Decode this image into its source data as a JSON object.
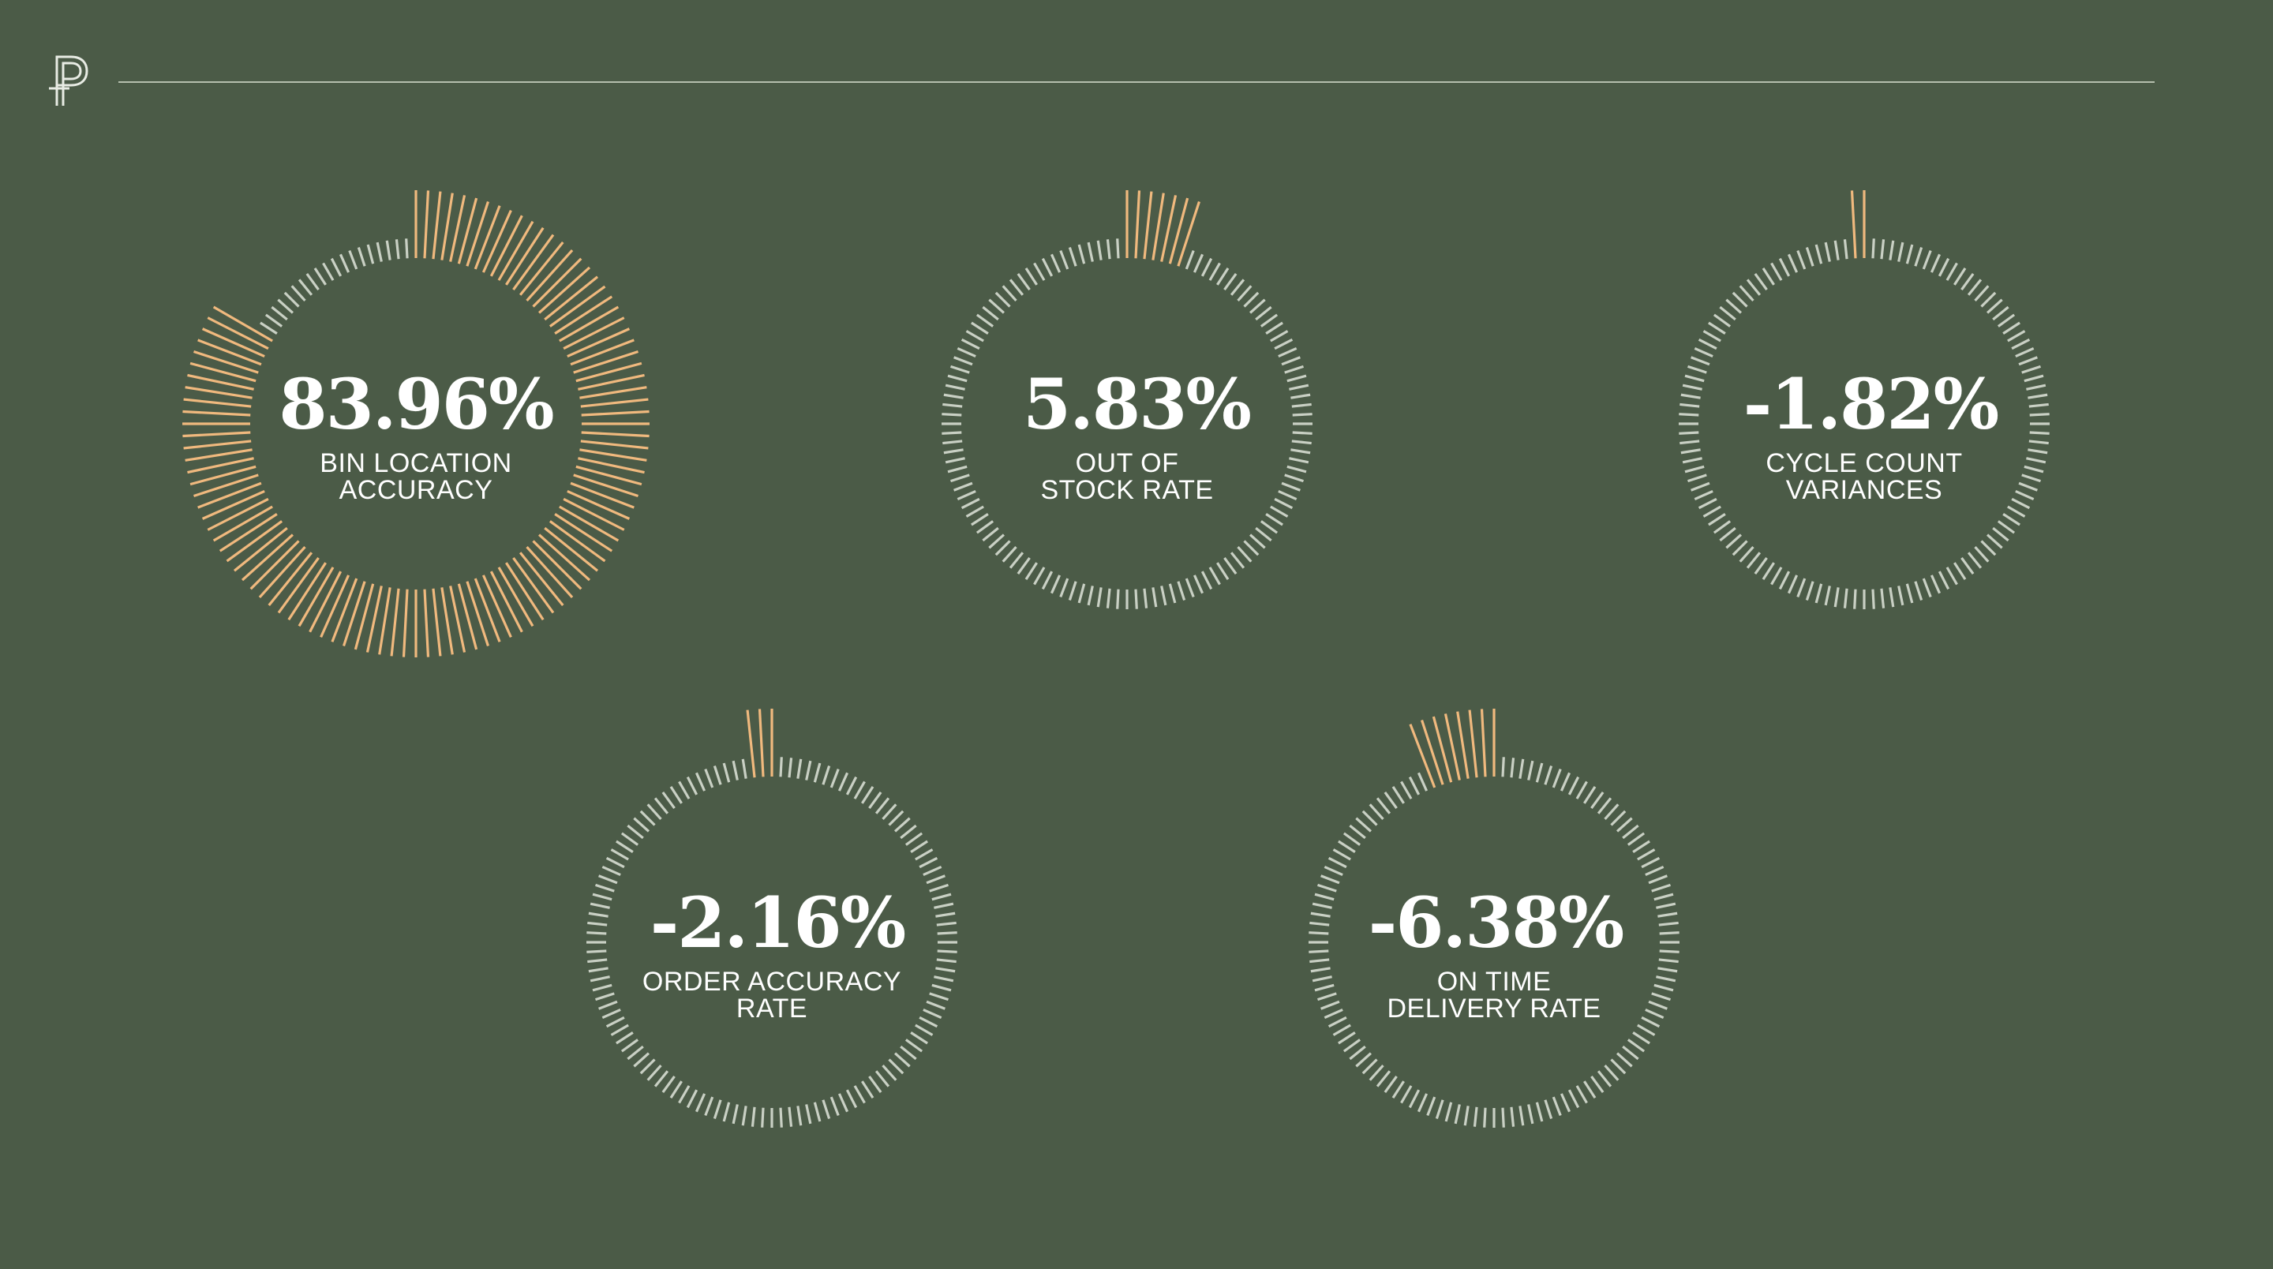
{
  "colors": {
    "background": "#4b5b47",
    "highlight_tick": "#f0b97e",
    "base_tick": "#c9d0c4",
    "text": "#ffffff",
    "rule": "#b6bfae"
  },
  "logo": {
    "icon": "p-monogram-logo"
  },
  "chart_data": [
    {
      "type": "radial-gauge",
      "value": 83.96,
      "value_label": "83.96%",
      "label_lines": [
        "BIN LOCATION",
        "ACCURACY"
      ],
      "unit": "%"
    },
    {
      "type": "radial-gauge",
      "value": 5.83,
      "value_label": "5.83%",
      "label_lines": [
        "OUT OF",
        "STOCK RATE"
      ],
      "unit": "%"
    },
    {
      "type": "radial-gauge",
      "value": -1.82,
      "value_label": "-1.82%",
      "label_lines": [
        "CYCLE COUNT",
        "VARIANCES"
      ],
      "unit": "%"
    },
    {
      "type": "radial-gauge",
      "value": -2.16,
      "value_label": "-2.16%",
      "label_lines": [
        "ORDER ACCURACY",
        "RATE"
      ],
      "unit": "%"
    },
    {
      "type": "radial-gauge",
      "value": -6.38,
      "value_label": "-6.38%",
      "label_lines": [
        "ON TIME",
        "DELIVERY RATE"
      ],
      "unit": "%"
    }
  ]
}
